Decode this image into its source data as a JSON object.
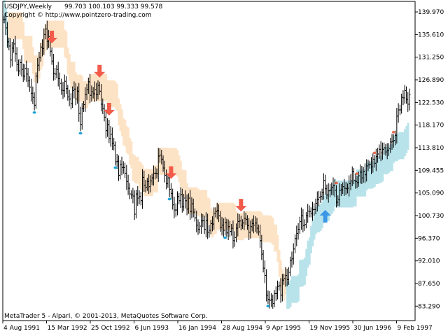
{
  "header": {
    "symbol": "USDJPY,Weekly",
    "ohlc": "99.703 100.103 99.333 99.578",
    "copyright": "Copyright © http://www.pointzero-trading.com"
  },
  "footer": {
    "platform_info": "MetaTrader 5 - Alpari, © 2001-2013, MetaQuotes Software Corp."
  },
  "colors": {
    "bear_band": "#fde3c6",
    "bull_band": "#b9e3ea",
    "down_arrow": "#f25b4a",
    "up_arrow": "#3b97e6",
    "bars": "#000000",
    "high_dot": "#e86a50",
    "low_dot": "#1aa3d6"
  },
  "chart_data": {
    "type": "ohlc",
    "y_ticks": [
      "139.970",
      "135.610",
      "131.250",
      "126.890",
      "122.530",
      "118.170",
      "113.810",
      "109.455",
      "105.090",
      "100.730",
      "96.370",
      "92.010",
      "87.650",
      "83.290"
    ],
    "x_ticks": [
      "4 Aug 1991",
      "15 Mar 1992",
      "25 Oct 1992",
      "6 Jun 1993",
      "16 Jan 1994",
      "28 Aug 1994",
      "9 Apr 1995",
      "19 Nov 1995",
      "30 Jun 1996",
      "9 Feb 1997"
    ],
    "ylim": [
      80.5,
      142.0
    ],
    "closes": [
      138.5,
      136.9,
      134.2,
      133.4,
      130.7,
      133.0,
      133.8,
      131.9,
      129.8,
      128.6,
      130.2,
      128.9,
      127.6,
      129.1,
      128.0,
      126.7,
      125.5,
      124.3,
      123.5,
      122.0,
      127.6,
      129.7,
      131.2,
      133.2,
      132.9,
      135.6,
      136.7,
      134.3,
      135.2,
      132.4,
      130.5,
      128.1,
      128.0,
      128.9,
      127.1,
      126.2,
      124.9,
      124.8,
      126.6,
      125.2,
      123.6,
      123.2,
      122.3,
      124.8,
      125.1,
      123.2,
      124.7,
      120.4,
      118.3,
      121.4,
      122.1,
      124.1,
      125.0,
      126.5,
      123.9,
      124.6,
      124.2,
      125.0,
      124.1,
      125.8,
      124.7,
      122.2,
      121.4,
      119.7,
      117.1,
      118.3,
      115.6,
      116.4,
      114.7,
      114.3,
      111.1,
      111.2,
      108.5,
      110.6,
      110.0,
      110.0,
      108.9,
      107.3,
      106.0,
      104.9,
      104.7,
      104.5,
      101.0,
      104.9,
      104.1,
      104.4,
      103.6,
      108.1,
      106.6,
      106.2,
      107.3,
      106.3,
      107.4,
      108.0,
      108.9,
      108.9,
      108.8,
      112.2,
      112.4,
      111.6,
      109.9,
      108.5,
      106.9,
      108.0,
      105.8,
      105.0,
      102.8,
      101.8,
      101.8,
      104.4,
      103.6,
      104.8,
      102.4,
      104.1,
      103.6,
      102.0,
      104.1,
      101.5,
      103.0,
      101.4,
      100.3,
      98.9,
      98.1,
      98.7,
      99.7,
      99.8,
      98.1,
      99.8,
      97.5,
      97.9,
      99.2,
      99.1,
      101.2,
      101.5,
      101.7,
      100.7,
      98.5,
      98.9,
      97.9,
      99.4,
      97.4,
      98.6,
      97.7,
      98.3,
      95.9,
      96.5,
      98.3,
      99.6,
      99.7,
      98.9,
      99.3,
      100.2,
      100.0,
      98.8,
      97.5,
      98.6,
      99.2,
      98.9,
      99.3,
      98.3,
      97.6,
      95.9,
      93.3,
      90.6,
      89.2,
      85.4,
      84.6,
      84.4,
      84.5,
      83.8,
      85.7,
      85.7,
      87.1,
      87.2,
      85.4,
      88.3,
      88.6,
      89.2,
      88.4,
      89.8,
      92.1,
      92.4,
      94.3,
      96.3,
      97.3,
      98.1,
      99.6,
      100.7,
      98.8,
      99.0,
      100.7,
      101.6,
      101.5,
      101.2,
      101.9,
      101.9,
      103.1,
      103.8,
      104.2,
      104.4,
      105.2,
      107.5,
      105.9,
      104.7,
      105.5,
      105.6,
      106.2,
      106.5,
      105.6,
      103.3,
      103.9,
      105.6,
      105.7,
      106.3,
      106.0,
      105.9,
      106.0,
      106.9,
      107.4,
      109.2,
      107.5,
      107.3,
      107.1,
      108.4,
      109.1,
      108.0,
      109.2,
      108.6,
      110.3,
      110.5,
      110.6,
      110.1,
      111.6,
      110.8,
      112.1,
      112.6,
      113.5,
      112.8,
      113.5,
      113.8,
      113.0,
      113.3,
      113.6,
      114.9,
      115.0,
      115.2,
      116.2,
      119.9,
      121.1,
      121.1,
      123.5,
      123.4,
      124.8,
      123.1,
      122.2,
      124.0
    ]
  }
}
